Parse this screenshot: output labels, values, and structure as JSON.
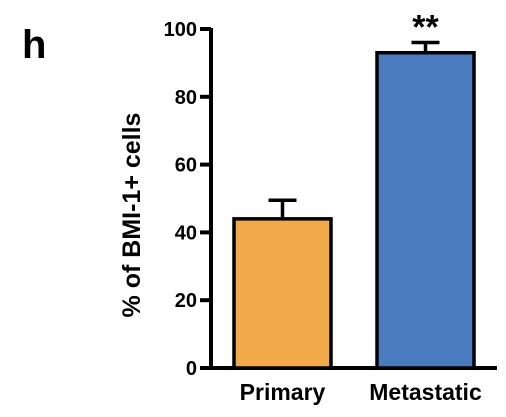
{
  "panel_label": "h",
  "chart_data": {
    "type": "bar",
    "categories": [
      "Primary",
      "Metastatic"
    ],
    "values": [
      44,
      93
    ],
    "errors": [
      5.5,
      3
    ],
    "bar_colors": [
      "#F2A94A",
      "#4A7BBE"
    ],
    "significance": [
      "",
      "**"
    ],
    "title": "",
    "xlabel": "",
    "ylabel": "% of BMI-1+ cells",
    "ylim": [
      0,
      100
    ],
    "yticks": [
      0,
      20,
      40,
      60,
      80,
      100
    ],
    "grid": false
  }
}
